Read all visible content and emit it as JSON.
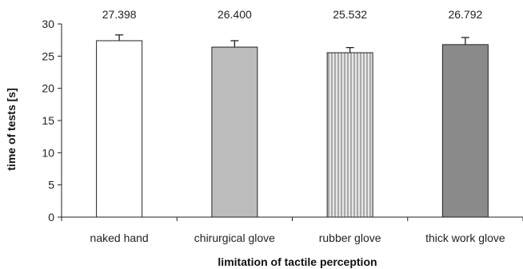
{
  "chart_data": {
    "type": "bar",
    "title": "",
    "xlabel": "limitation of tactile perception",
    "ylabel": "time of tests [s]",
    "ylim": [
      0,
      30
    ],
    "yticks": [
      0,
      5,
      10,
      15,
      20,
      25,
      30
    ],
    "grid": false,
    "legend": "none",
    "categories": [
      "naked hand",
      "chirurgical glove",
      "rubber glove",
      "thick work glove"
    ],
    "values": [
      27.398,
      26.4,
      25.532,
      26.792
    ],
    "value_labels": [
      "27.398",
      "26.400",
      "25.532",
      "26.792"
    ],
    "error_plus": [
      0.9,
      1.0,
      0.8,
      1.1
    ],
    "bar_fills": [
      "white",
      "light-gray",
      "vertical-stripes",
      "dark-gray"
    ],
    "colors": {
      "light_gray": "#bcbcbc",
      "stripe_a": "#e6e6e6",
      "stripe_b": "#a8a8a8",
      "dark_gray": "#8a8a8a",
      "outline": "#222222"
    }
  }
}
